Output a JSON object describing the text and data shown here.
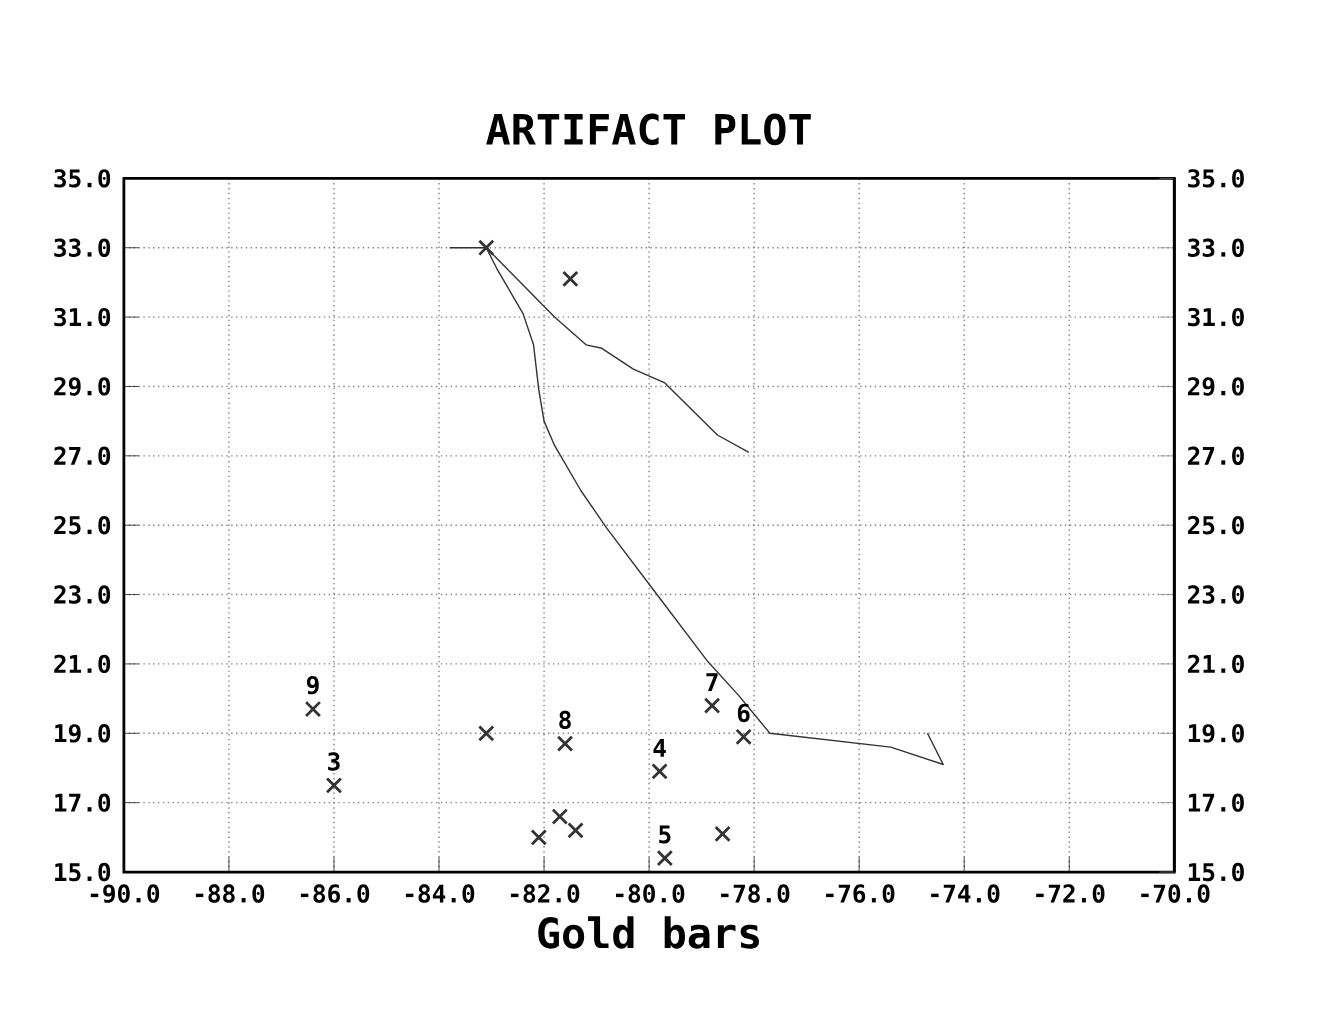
{
  "chart_data": {
    "type": "line",
    "title": "ARTIFACT PLOT",
    "xlabel": "Gold bars",
    "xlim": [
      -90,
      -70
    ],
    "ylim": [
      15,
      35
    ],
    "y2lim": [
      15,
      35
    ],
    "xticks": [
      {
        "value": -90,
        "label": "-90.0"
      },
      {
        "value": -88,
        "label": "-88.0"
      },
      {
        "value": -86,
        "label": "-86.0"
      },
      {
        "value": -84,
        "label": "-84.0"
      },
      {
        "value": -82,
        "label": "-82.0"
      },
      {
        "value": -80,
        "label": "-80.0"
      },
      {
        "value": -78,
        "label": "-78.0"
      },
      {
        "value": -76,
        "label": "-76.0"
      },
      {
        "value": -74,
        "label": "-74.0"
      },
      {
        "value": -72,
        "label": "-72.0"
      },
      {
        "value": -70,
        "label": "-70.0"
      }
    ],
    "yticks": [
      {
        "value": 15,
        "label": "15.0"
      },
      {
        "value": 17,
        "label": "17.0"
      },
      {
        "value": 19,
        "label": "19.0"
      },
      {
        "value": 21,
        "label": "21.0"
      },
      {
        "value": 23,
        "label": "23.0"
      },
      {
        "value": 25,
        "label": "25.0"
      },
      {
        "value": 27,
        "label": "27.0"
      },
      {
        "value": 29,
        "label": "29.0"
      },
      {
        "value": 31,
        "label": "31.0"
      },
      {
        "value": 33,
        "label": "33.0"
      },
      {
        "value": 35,
        "label": "35.0"
      }
    ],
    "y2ticks": [
      {
        "value": 15,
        "label": "15.0"
      },
      {
        "value": 17,
        "label": "17.0"
      },
      {
        "value": 19,
        "label": "19.0"
      },
      {
        "value": 21,
        "label": "21.0"
      },
      {
        "value": 23,
        "label": "23.0"
      },
      {
        "value": 25,
        "label": "25.0"
      },
      {
        "value": 27,
        "label": "27.0"
      },
      {
        "value": 29,
        "label": "29.0"
      },
      {
        "value": 31,
        "label": "31.0"
      },
      {
        "value": 33,
        "label": "33.0"
      },
      {
        "value": 35,
        "label": "35.0"
      }
    ],
    "grid": true,
    "series": [
      {
        "color": "#333333",
        "marker": "none",
        "x": [
          -83.8,
          -83.1,
          -81.8,
          -81.2,
          -80.9,
          -80.3,
          -79.7,
          -78.7,
          -78.1
        ],
        "values": [
          33.0,
          33.0,
          31.0,
          30.2,
          30.1,
          29.5,
          29.1,
          27.6,
          27.1
        ]
      },
      {
        "color": "#333333",
        "marker": "none",
        "x": [
          -83.1,
          -82.9,
          -82.4,
          -82.2,
          -82.1,
          -82.0,
          -81.8,
          -81.3,
          -80.8,
          -79.8,
          -78.9,
          -78.3,
          -77.7,
          -75.4,
          -74.4,
          -74.7
        ],
        "values": [
          33.0,
          32.4,
          31.1,
          30.2,
          28.9,
          28.0,
          27.3,
          26.0,
          24.9,
          22.9,
          21.1,
          20.1,
          19.0,
          18.6,
          18.1,
          19.0
        ]
      },
      {
        "type": "scatter",
        "color": "#333333",
        "marker": "cross",
        "x": [
          -83.1,
          -81.5,
          -86.4,
          -86.0,
          -83.1,
          -81.6,
          -82.1,
          -81.7,
          -81.4,
          -79.8,
          -79.7,
          -78.6,
          -78.8,
          -78.2
        ],
        "values": [
          33.0,
          32.1,
          19.7,
          17.5,
          19.0,
          18.7,
          16.0,
          16.6,
          16.2,
          17.9,
          15.4,
          16.1,
          19.8,
          18.9
        ]
      }
    ],
    "annotations": [
      {
        "text": "9",
        "x": -86.4,
        "y": 19.7
      },
      {
        "text": "3",
        "x": -86.0,
        "y": 17.5
      },
      {
        "text": "8",
        "x": -81.6,
        "y": 18.7
      },
      {
        "text": "4",
        "x": -79.8,
        "y": 17.9
      },
      {
        "text": "5",
        "x": -79.7,
        "y": 15.4
      },
      {
        "text": "7",
        "x": -78.8,
        "y": 19.8
      },
      {
        "text": "6",
        "x": -78.2,
        "y": 18.9
      }
    ]
  }
}
